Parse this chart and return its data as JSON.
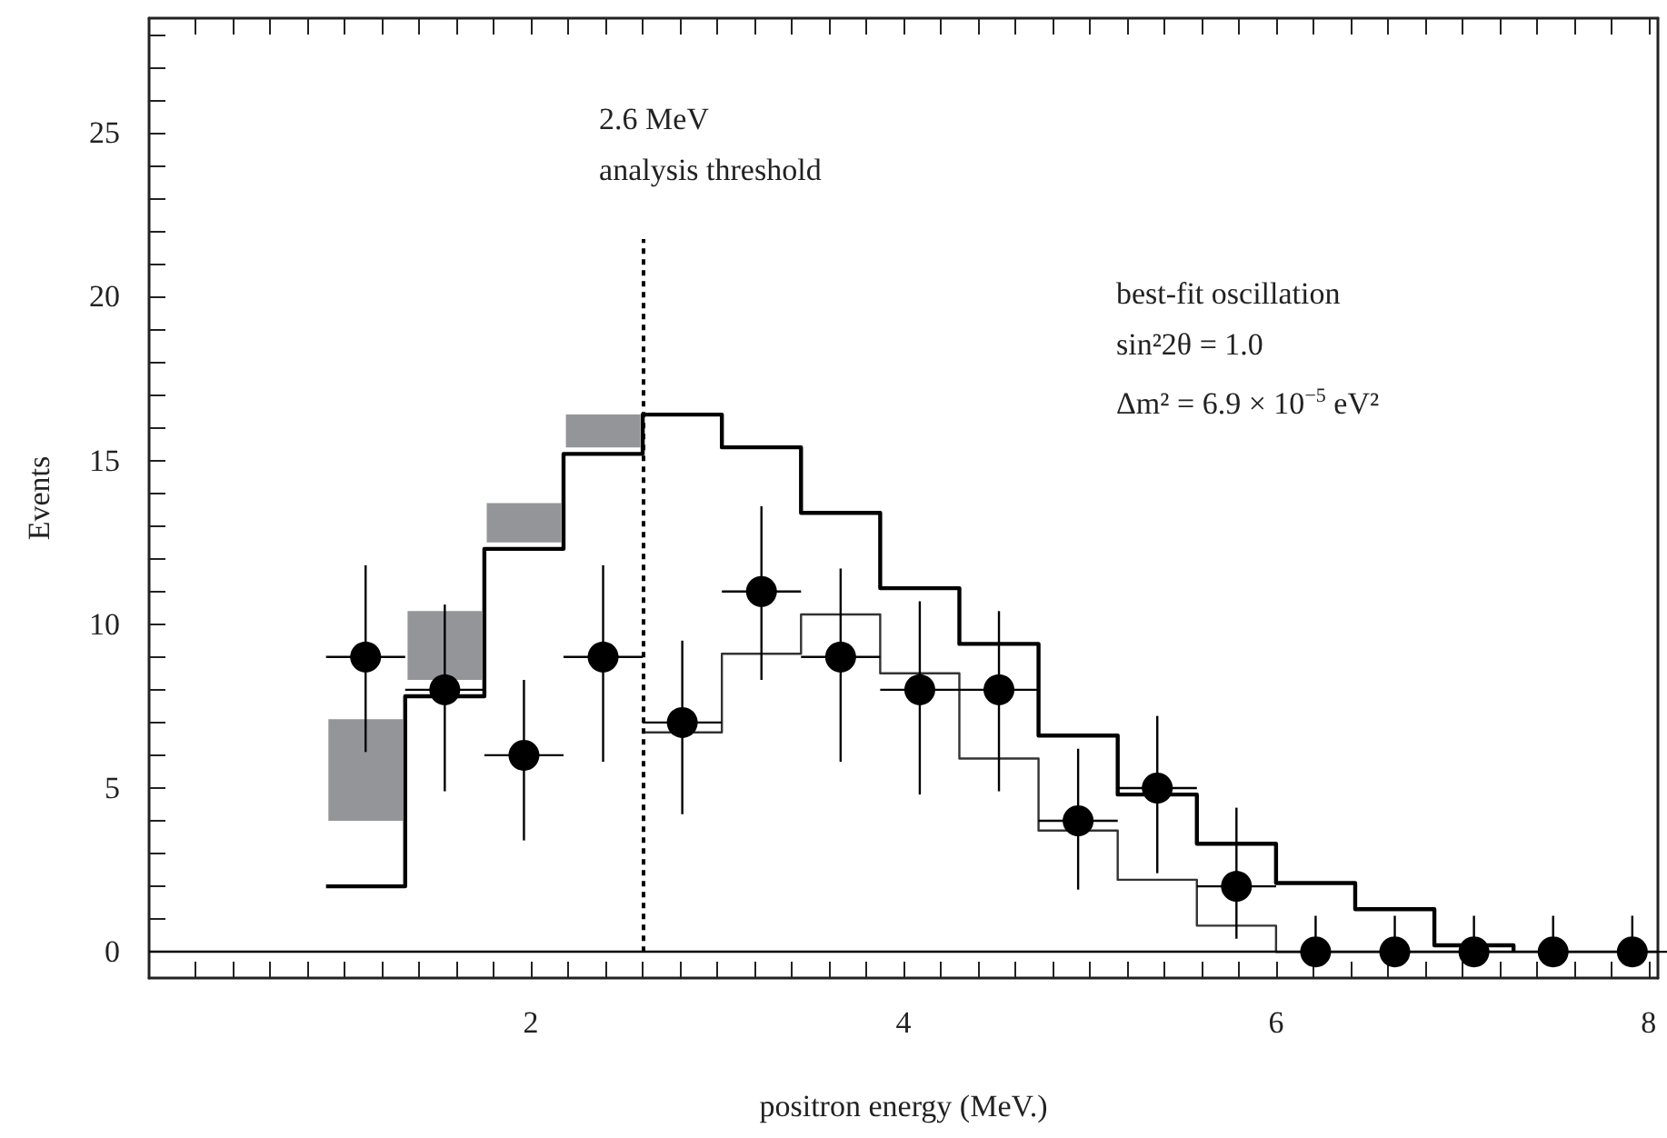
{
  "chart_data": {
    "type": "histogram",
    "xlabel": "positron energy (MeV.)",
    "ylabel": "Events",
    "xlim": [
      -0.05,
      8.05
    ],
    "ylim": [
      -0.8,
      28.5
    ],
    "xticks": [
      {
        "value": 0.2,
        "label": null
      },
      {
        "value": 0.4,
        "label": null
      },
      {
        "value": 0.6,
        "label": null
      },
      {
        "value": 0.8,
        "label": null
      },
      {
        "value": 1.0,
        "label": null
      },
      {
        "value": 1.2,
        "label": null
      },
      {
        "value": 1.4,
        "label": null
      },
      {
        "value": 1.6,
        "label": null
      },
      {
        "value": 1.8,
        "label": null
      },
      2,
      {
        "value": 2.2,
        "label": null
      },
      {
        "value": 2.4,
        "label": null
      },
      {
        "value": 2.6,
        "label": null
      },
      {
        "value": 2.8,
        "label": null
      },
      {
        "value": 3.0,
        "label": null
      },
      {
        "value": 3.2,
        "label": null
      },
      {
        "value": 3.4,
        "label": null
      },
      {
        "value": 3.6,
        "label": null
      },
      {
        "value": 3.8,
        "label": null
      },
      4,
      {
        "value": 4.2,
        "label": null
      },
      {
        "value": 4.4,
        "label": null
      },
      {
        "value": 4.6,
        "label": null
      },
      {
        "value": 4.8,
        "label": null
      },
      {
        "value": 5.0,
        "label": null
      },
      {
        "value": 5.2,
        "label": null
      },
      {
        "value": 5.4,
        "label": null
      },
      {
        "value": 5.6,
        "label": null
      },
      {
        "value": 5.8,
        "label": null
      },
      6,
      {
        "value": 6.2,
        "label": null
      },
      {
        "value": 6.4,
        "label": null
      },
      {
        "value": 6.6,
        "label": null
      },
      {
        "value": 6.8,
        "label": null
      },
      {
        "value": 7.0,
        "label": null
      },
      {
        "value": 7.2,
        "label": null
      },
      {
        "value": 7.4,
        "label": null
      },
      {
        "value": 7.6,
        "label": null
      },
      {
        "value": 7.8,
        "label": null
      },
      8
    ],
    "yticks": [
      0,
      {
        "value": 1,
        "label": null
      },
      {
        "value": 2,
        "label": null
      },
      {
        "value": 3,
        "label": null
      },
      {
        "value": 4,
        "label": null
      },
      5,
      {
        "value": 6,
        "label": null
      },
      {
        "value": 7,
        "label": null
      },
      {
        "value": 8,
        "label": null
      },
      {
        "value": 9,
        "label": null
      },
      10,
      {
        "value": 11,
        "label": null
      },
      {
        "value": 12,
        "label": null
      },
      {
        "value": 13,
        "label": null
      },
      {
        "value": 14,
        "label": null
      },
      15,
      {
        "value": 16,
        "label": null
      },
      {
        "value": 17,
        "label": null
      },
      {
        "value": 18,
        "label": null
      },
      {
        "value": 19,
        "label": null
      },
      20,
      {
        "value": 21,
        "label": null
      },
      {
        "value": 22,
        "label": null
      },
      {
        "value": 23,
        "label": null
      },
      {
        "value": 24,
        "label": null
      },
      25,
      {
        "value": 26,
        "label": null
      },
      {
        "value": 27,
        "label": null
      },
      {
        "value": 28,
        "label": null
      }
    ],
    "grid": false,
    "series": [
      {
        "type": "bar",
        "color": "#939598",
        "x": [
          1.1125,
          1.5375,
          1.9625,
          2.3875
        ],
        "base": [
          4.0,
          8.3,
          12.5,
          15.4
        ],
        "values": [
          3.1,
          2.1,
          1.2,
          1.0
        ]
      },
      {
        "color": "#000000",
        "bins": [
          0.9,
          1.325,
          1.75,
          2.175,
          2.6,
          3.025,
          3.45,
          3.875,
          4.3,
          4.725,
          5.15,
          5.575,
          6.0,
          6.425,
          6.85,
          7.275
        ],
        "values": [
          2.0,
          7.8,
          12.3,
          15.2,
          16.4,
          15.4,
          13.4,
          11.1,
          9.4,
          6.6,
          4.8,
          3.3,
          2.1,
          1.3,
          0.2
        ]
      },
      {
        "color": "#333333",
        "bins": [
          2.6,
          3.025,
          3.45,
          3.875,
          4.3,
          4.725,
          5.15,
          5.575,
          6.0,
          8.05
        ],
        "values": [
          6.7,
          9.1,
          10.3,
          8.5,
          5.9,
          3.7,
          2.2,
          0.8,
          0
        ]
      },
      {
        "type": "scatter",
        "color": "#000000",
        "marker": "circle",
        "x": [
          1.1125,
          1.5375,
          1.9625,
          2.3875,
          2.8125,
          3.2375,
          3.6625,
          4.0875,
          4.5125,
          4.9375,
          5.3625,
          5.7875,
          6.2125,
          6.6375,
          7.0625,
          7.4875,
          7.9125
        ],
        "values": [
          9,
          8,
          6,
          9,
          7,
          11,
          9,
          8,
          8,
          4,
          5,
          2,
          0,
          0,
          0,
          0,
          0
        ],
        "errors": [
          [
            6.1,
            11.8
          ],
          [
            4.9,
            10.6
          ],
          [
            3.4,
            8.3
          ],
          [
            5.8,
            11.8
          ],
          [
            4.2,
            9.5
          ],
          [
            8.3,
            13.6
          ],
          [
            5.8,
            11.7
          ],
          [
            4.8,
            10.7
          ],
          [
            4.9,
            10.4
          ],
          [
            1.9,
            6.2
          ],
          [
            2.4,
            7.2
          ],
          [
            0.4,
            4.4
          ],
          [
            0,
            1.1
          ],
          [
            0,
            1.1
          ],
          [
            0,
            1.1
          ],
          [
            0,
            1.1
          ],
          [
            0,
            1.1
          ]
        ],
        "xerrors": [
          0.2125,
          0.2125,
          0.2125,
          0.2125,
          0.2125,
          0.2125,
          0.2125,
          0.2125,
          0.2125,
          0.2125,
          0.2125,
          0.2125,
          0.2125,
          0.2125,
          0.2125,
          0.2125,
          0.2125
        ]
      }
    ],
    "ref_lines": [
      {
        "axis": "x",
        "value": 2.6,
        "label": "2.6 MeV\nanalysis threshold",
        "color": "#000000",
        "line_style": "dotted"
      },
      {
        "axis": "y",
        "value": 0,
        "color": "#000000",
        "line_style": "solid"
      }
    ],
    "annotations": [
      "best-fit oscillation",
      "sin²2θ = 1.0",
      "Δm² = 6.9 × 10$^{−5}$ eV²"
    ]
  }
}
